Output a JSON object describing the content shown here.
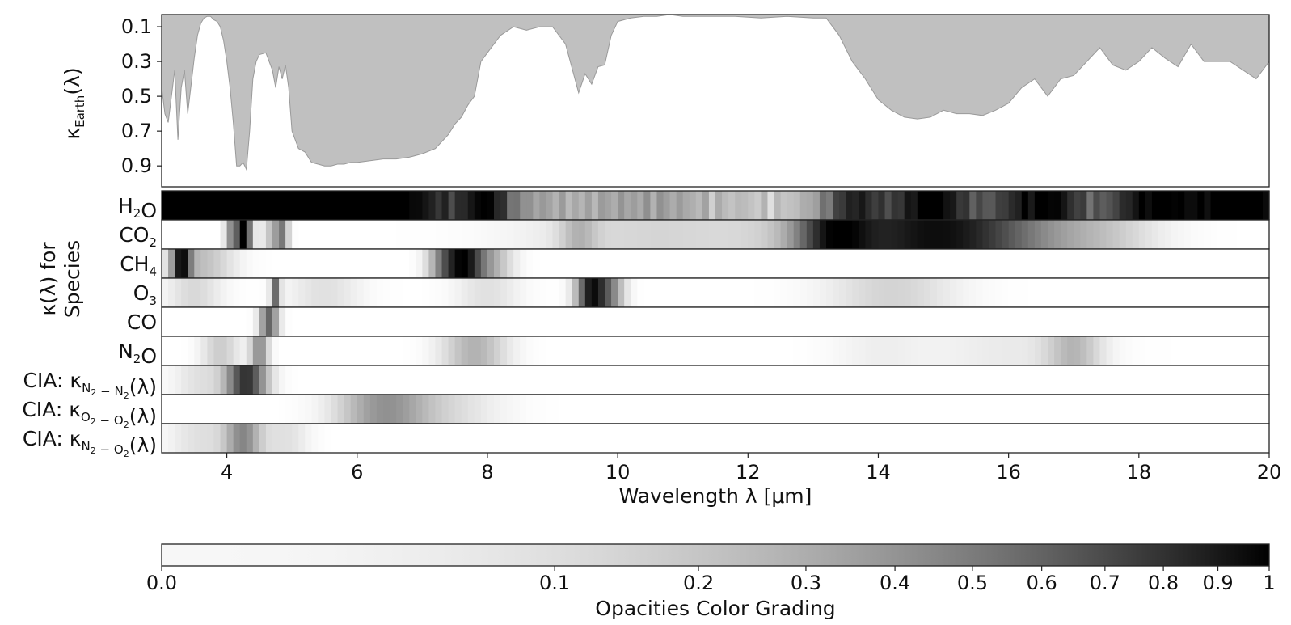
{
  "chart_data": [
    {
      "type": "area",
      "panel": "earth-opacity",
      "ylabel": "κEarth(λ)",
      "y_inverted": true,
      "ylim": [
        1.02,
        0.03
      ],
      "yticks": [
        "0.1",
        "0.3",
        "0.5",
        "0.7",
        "0.9"
      ],
      "xlim": [
        3,
        20
      ],
      "fill_color": "#c0c0c0",
      "x": [
        3.0,
        3.05,
        3.1,
        3.2,
        3.25,
        3.3,
        3.35,
        3.4,
        3.5,
        3.55,
        3.6,
        3.65,
        3.7,
        3.75,
        3.8,
        3.85,
        3.9,
        3.95,
        4.0,
        4.05,
        4.1,
        4.15,
        4.2,
        4.25,
        4.3,
        4.35,
        4.4,
        4.45,
        4.5,
        4.6,
        4.7,
        4.75,
        4.8,
        4.85,
        4.9,
        4.95,
        5.0,
        5.1,
        5.2,
        5.3,
        5.4,
        5.5,
        5.6,
        5.7,
        5.8,
        5.9,
        6.0,
        6.2,
        6.4,
        6.6,
        6.8,
        7.0,
        7.2,
        7.3,
        7.4,
        7.5,
        7.6,
        7.7,
        7.8,
        7.9,
        8.0,
        8.2,
        8.4,
        8.6,
        8.8,
        9.0,
        9.2,
        9.4,
        9.5,
        9.6,
        9.7,
        9.8,
        9.9,
        10.0,
        10.2,
        10.4,
        10.6,
        10.8,
        11.0,
        11.4,
        11.8,
        12.2,
        12.6,
        13.0,
        13.2,
        13.4,
        13.6,
        13.8,
        14.0,
        14.2,
        14.4,
        14.6,
        14.8,
        15.0,
        15.2,
        15.4,
        15.6,
        15.8,
        16.0,
        16.2,
        16.4,
        16.6,
        16.8,
        17.0,
        17.2,
        17.4,
        17.6,
        17.8,
        18.0,
        18.2,
        18.4,
        18.6,
        18.8,
        19.0,
        19.2,
        19.4,
        19.6,
        19.8,
        20.0
      ],
      "y": [
        0.45,
        0.6,
        0.65,
        0.35,
        0.75,
        0.45,
        0.35,
        0.6,
        0.28,
        0.15,
        0.08,
        0.05,
        0.04,
        0.04,
        0.06,
        0.07,
        0.1,
        0.18,
        0.3,
        0.45,
        0.65,
        0.9,
        0.9,
        0.88,
        0.92,
        0.7,
        0.4,
        0.3,
        0.26,
        0.25,
        0.35,
        0.45,
        0.33,
        0.4,
        0.32,
        0.45,
        0.7,
        0.8,
        0.82,
        0.88,
        0.89,
        0.9,
        0.9,
        0.89,
        0.89,
        0.88,
        0.88,
        0.87,
        0.86,
        0.86,
        0.85,
        0.83,
        0.8,
        0.76,
        0.72,
        0.66,
        0.62,
        0.55,
        0.5,
        0.3,
        0.25,
        0.15,
        0.1,
        0.12,
        0.1,
        0.1,
        0.2,
        0.48,
        0.37,
        0.43,
        0.33,
        0.32,
        0.15,
        0.07,
        0.05,
        0.04,
        0.04,
        0.03,
        0.04,
        0.04,
        0.04,
        0.05,
        0.04,
        0.05,
        0.05,
        0.15,
        0.3,
        0.4,
        0.52,
        0.58,
        0.62,
        0.63,
        0.62,
        0.58,
        0.6,
        0.6,
        0.61,
        0.58,
        0.54,
        0.45,
        0.4,
        0.5,
        0.4,
        0.38,
        0.3,
        0.22,
        0.32,
        0.35,
        0.3,
        0.22,
        0.28,
        0.33,
        0.2,
        0.3,
        0.3,
        0.3,
        0.35,
        0.4,
        0.3
      ],
      "fill_between": "top"
    },
    {
      "type": "heatmap",
      "panel": "species-opacities",
      "ylabel": "κ(λ) for Species",
      "xlabel": "Wavelength λ [μm]",
      "xlim": [
        3,
        20
      ],
      "xticks": [
        "4",
        "6",
        "8",
        "10",
        "12",
        "14",
        "16",
        "18",
        "20"
      ],
      "rows": [
        {
          "label": "H2O",
          "base": 0.1,
          "bands": [
            [
              3.3,
              0.35,
              0.85
            ],
            [
              5.8,
              1.5,
              0.95
            ],
            [
              4.5,
              0.8,
              0.7
            ],
            [
              8.0,
              0.25,
              0.45
            ],
            [
              13.6,
              0.35,
              0.6
            ],
            [
              14.8,
              0.5,
              0.8
            ],
            [
              16.5,
              0.55,
              0.8
            ],
            [
              18.2,
              0.5,
              0.75
            ],
            [
              19.6,
              0.6,
              0.9
            ],
            [
              10.5,
              0.7,
              0.15
            ]
          ]
        },
        {
          "label": "CO2",
          "bands": [
            [
              4.25,
              0.09,
              1.0
            ],
            [
              4.05,
              0.06,
              0.35
            ],
            [
              4.85,
              0.07,
              0.45
            ],
            [
              4.7,
              0.1,
              0.25
            ],
            [
              14.9,
              1.3,
              0.95
            ],
            [
              13.3,
              0.4,
              0.55
            ],
            [
              10.5,
              1.3,
              0.16
            ],
            [
              9.4,
              0.2,
              0.2
            ],
            [
              17.5,
              0.6,
              0.12
            ]
          ]
        },
        {
          "label": "CH4",
          "bands": [
            [
              3.3,
              0.1,
              0.85
            ],
            [
              3.6,
              0.35,
              0.25
            ],
            [
              7.65,
              0.18,
              0.75
            ],
            [
              7.35,
              0.18,
              0.5
            ],
            [
              8.0,
              0.25,
              0.35
            ]
          ]
        },
        {
          "label": "O3",
          "bands": [
            [
              9.6,
              0.16,
              0.9
            ],
            [
              9.9,
              0.15,
              0.4
            ],
            [
              14.2,
              0.7,
              0.17
            ],
            [
              4.75,
              0.05,
              0.55
            ],
            [
              3.5,
              0.3,
              0.15
            ],
            [
              5.5,
              0.4,
              0.12
            ],
            [
              8.0,
              0.35,
              0.12
            ]
          ]
        },
        {
          "label": "CO",
          "bands": [
            [
              4.65,
              0.1,
              0.6
            ]
          ]
        },
        {
          "label": "N2O",
          "bands": [
            [
              4.5,
              0.1,
              0.45
            ],
            [
              3.9,
              0.2,
              0.2
            ],
            [
              7.8,
              0.35,
              0.3
            ],
            [
              17.0,
              0.3,
              0.25
            ],
            [
              16.0,
              0.9,
              0.08
            ],
            [
              14.0,
              0.5,
              0.06
            ]
          ]
        },
        {
          "label": "CIA: κN2−N2(λ)",
          "bands": [
            [
              4.3,
              0.22,
              0.8
            ],
            [
              3.6,
              0.3,
              0.12
            ]
          ]
        },
        {
          "label": "CIA: κO2−O2(λ)",
          "bands": [
            [
              6.4,
              0.5,
              0.4
            ],
            [
              7.4,
              0.6,
              0.12
            ]
          ]
        },
        {
          "label": "CIA: κN2−O2(λ)",
          "bands": [
            [
              4.25,
              0.2,
              0.45
            ],
            [
              3.6,
              0.35,
              0.12
            ],
            [
              4.9,
              0.25,
              0.12
            ]
          ]
        }
      ],
      "colormap": "Greys"
    },
    {
      "type": "colorbar",
      "panel": "colorbar",
      "title": "Opacities Color Grading",
      "ticks": [
        "0.0",
        "0.1",
        "0.2",
        "0.3",
        "0.4",
        "0.5",
        "0.6",
        "0.7",
        "0.8",
        "0.9",
        "1"
      ],
      "tick_values": [
        0,
        0.1,
        0.2,
        0.3,
        0.4,
        0.5,
        0.6,
        0.7,
        0.8,
        0.9,
        1.0
      ],
      "scale": "power",
      "colormap": "Greys"
    }
  ]
}
